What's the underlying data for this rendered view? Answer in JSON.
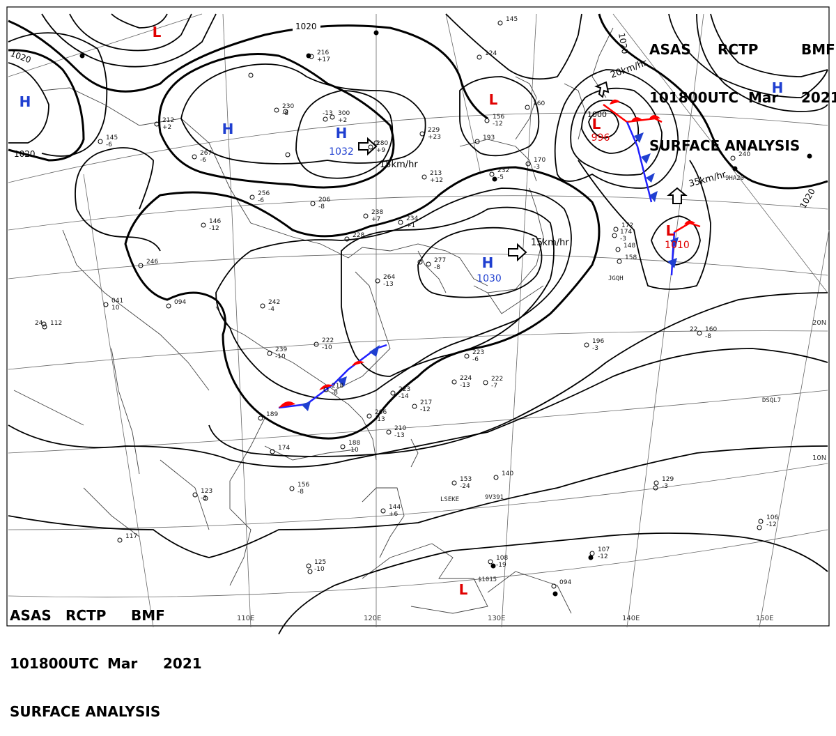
{
  "header": {
    "line1": [
      "ASAS",
      "RCTP",
      "BMF"
    ],
    "line2": [
      "101800UTC",
      "Mar",
      "2021"
    ],
    "line3": "SURFACE ANALYSIS"
  },
  "pressure_centers": [
    {
      "type": "H",
      "value": "1032"
    },
    {
      "type": "H",
      "value": "1030"
    },
    {
      "type": "H",
      "value": ""
    },
    {
      "type": "H",
      "value": ""
    },
    {
      "type": "H",
      "value": ""
    },
    {
      "type": "L",
      "value": "996"
    },
    {
      "type": "L",
      "value": "1010"
    },
    {
      "type": "L",
      "value": ""
    },
    {
      "type": "L",
      "value": ""
    },
    {
      "type": "L",
      "value": ""
    }
  ],
  "isobar_labels": [
    "1020",
    "1020",
    "1020",
    "1020",
    "1020",
    "1000"
  ],
  "motion_labels": [
    "15km/hr",
    "15km/hr",
    "20km/hr",
    "35km/hr"
  ],
  "lon_labels": [
    "110E",
    "120E",
    "130E",
    "140E",
    "150E"
  ],
  "lat_labels": [
    "20N",
    "10N"
  ],
  "ship_ids": [
    "LSEKE",
    "9V391",
    "DSQL7",
    "9HA20",
    "JGQH",
    "$1015"
  ],
  "stations": [
    {
      "t": "",
      "p": "216",
      "a": "+17",
      "w": ""
    },
    {
      "t": "-13",
      "p": "300",
      "a": "+2",
      "w": ""
    },
    {
      "t": "",
      "p": "280",
      "a": "+9",
      "w": ""
    },
    {
      "t": "",
      "p": "230",
      "a": "",
      "w": "-8"
    },
    {
      "t": "",
      "p": "267",
      "a": "",
      "w": "-6"
    },
    {
      "t": "",
      "p": "212",
      "a": "+2",
      "w": ""
    },
    {
      "t": "",
      "p": "145",
      "a": "",
      "w": "-6"
    },
    {
      "t": "",
      "p": "256",
      "a": "",
      "w": "-6"
    },
    {
      "t": "",
      "p": "206",
      "a": "",
      "w": "-8"
    },
    {
      "t": "",
      "p": "146",
      "a": "",
      "w": "-12"
    },
    {
      "t": "",
      "p": "246",
      "a": "",
      "w": ""
    },
    {
      "t": "",
      "p": "041",
      "a": "",
      "w": "10"
    },
    {
      "t": "24",
      "p": "112",
      "a": "",
      "w": ""
    },
    {
      "t": "",
      "p": "094",
      "a": "",
      "w": ""
    },
    {
      "t": "",
      "p": "242",
      "a": "",
      "w": "-4"
    },
    {
      "t": "",
      "p": "239",
      "a": "",
      "w": "-10"
    },
    {
      "t": "",
      "p": "222",
      "a": "",
      "w": "-10"
    },
    {
      "t": "",
      "p": "218",
      "a": "",
      "w": "-8"
    },
    {
      "t": "",
      "p": "189",
      "a": "",
      "w": ""
    },
    {
      "t": "",
      "p": "174",
      "a": "",
      "w": ""
    },
    {
      "t": "",
      "p": "223",
      "a": "",
      "w": "-14"
    },
    {
      "t": "",
      "p": "217",
      "a": "",
      "w": "-12"
    },
    {
      "t": "",
      "p": "206",
      "a": "",
      "w": "-13"
    },
    {
      "t": "",
      "p": "210",
      "a": "",
      "w": "-13"
    },
    {
      "t": "",
      "p": "188",
      "a": "",
      "w": "-10"
    },
    {
      "t": "",
      "p": "156",
      "a": "",
      "w": "-8"
    },
    {
      "t": "",
      "p": "123",
      "a": "",
      "w": "-3"
    },
    {
      "t": "",
      "p": "117",
      "a": "",
      "w": ""
    },
    {
      "t": "",
      "p": "125",
      "a": "",
      "w": "-10"
    },
    {
      "t": "",
      "p": "238",
      "a": "+7",
      "w": ""
    },
    {
      "t": "",
      "p": "234",
      "a": "+1",
      "w": ""
    },
    {
      "t": "",
      "p": "228",
      "a": "",
      "w": ""
    },
    {
      "t": "",
      "p": "264",
      "a": "",
      "w": "-13"
    },
    {
      "t": "",
      "p": "277",
      "a": "",
      "w": "-8"
    },
    {
      "t": "",
      "p": "213",
      "a": "+12",
      "w": ""
    },
    {
      "t": "",
      "p": "229",
      "a": "+23",
      "w": ""
    },
    {
      "t": "",
      "p": "232",
      "a": "",
      "w": "-5"
    },
    {
      "t": "",
      "p": "193",
      "a": "",
      "w": ""
    },
    {
      "t": "",
      "p": "124",
      "a": "",
      "w": ""
    },
    {
      "t": "",
      "p": "156",
      "a": "",
      "w": "-12"
    },
    {
      "t": "",
      "p": "160",
      "a": "",
      "w": ""
    },
    {
      "t": "",
      "p": "145",
      "a": "",
      "w": ""
    },
    {
      "t": "",
      "p": "170",
      "a": "",
      "w": "-3"
    },
    {
      "t": "",
      "p": "224",
      "a": "",
      "w": "-13"
    },
    {
      "t": "",
      "p": "222",
      "a": "",
      "w": "-7"
    },
    {
      "t": "",
      "p": "223",
      "a": "",
      "w": "-6"
    },
    {
      "t": "",
      "p": "196",
      "a": "",
      "w": "-3"
    },
    {
      "t": "22",
      "p": "160",
      "a": "",
      "w": "-8"
    },
    {
      "t": "",
      "p": "153",
      "a": "",
      "w": "-24"
    },
    {
      "t": "",
      "p": "140",
      "a": "",
      "w": ""
    },
    {
      "t": "",
      "p": "144",
      "a": "",
      "w": "+6"
    },
    {
      "t": "",
      "p": "108",
      "a": "",
      "w": "-19"
    },
    {
      "t": "",
      "p": "094",
      "a": "",
      "w": ""
    },
    {
      "t": "",
      "p": "107",
      "a": "",
      "w": "-12"
    },
    {
      "t": "",
      "p": "106",
      "a": "",
      "w": "-12"
    },
    {
      "t": "",
      "p": "129",
      "a": "",
      "w": "-3"
    },
    {
      "t": "",
      "p": "240",
      "a": "",
      "w": ""
    },
    {
      "t": "",
      "p": "174",
      "a": "",
      "w": "-3"
    },
    {
      "t": "",
      "p": "172",
      "a": "",
      "w": ""
    },
    {
      "t": "",
      "p": "148",
      "a": "",
      "w": ""
    },
    {
      "t": "",
      "p": "158",
      "a": "",
      "w": ""
    }
  ],
  "colors": {
    "isobar": "#000000",
    "high": "#1f3fd0",
    "low": "#e00000",
    "cold_front": "#0000ff",
    "warm_front": "#ff0000",
    "grid": "#555555",
    "coast": "#555555"
  }
}
